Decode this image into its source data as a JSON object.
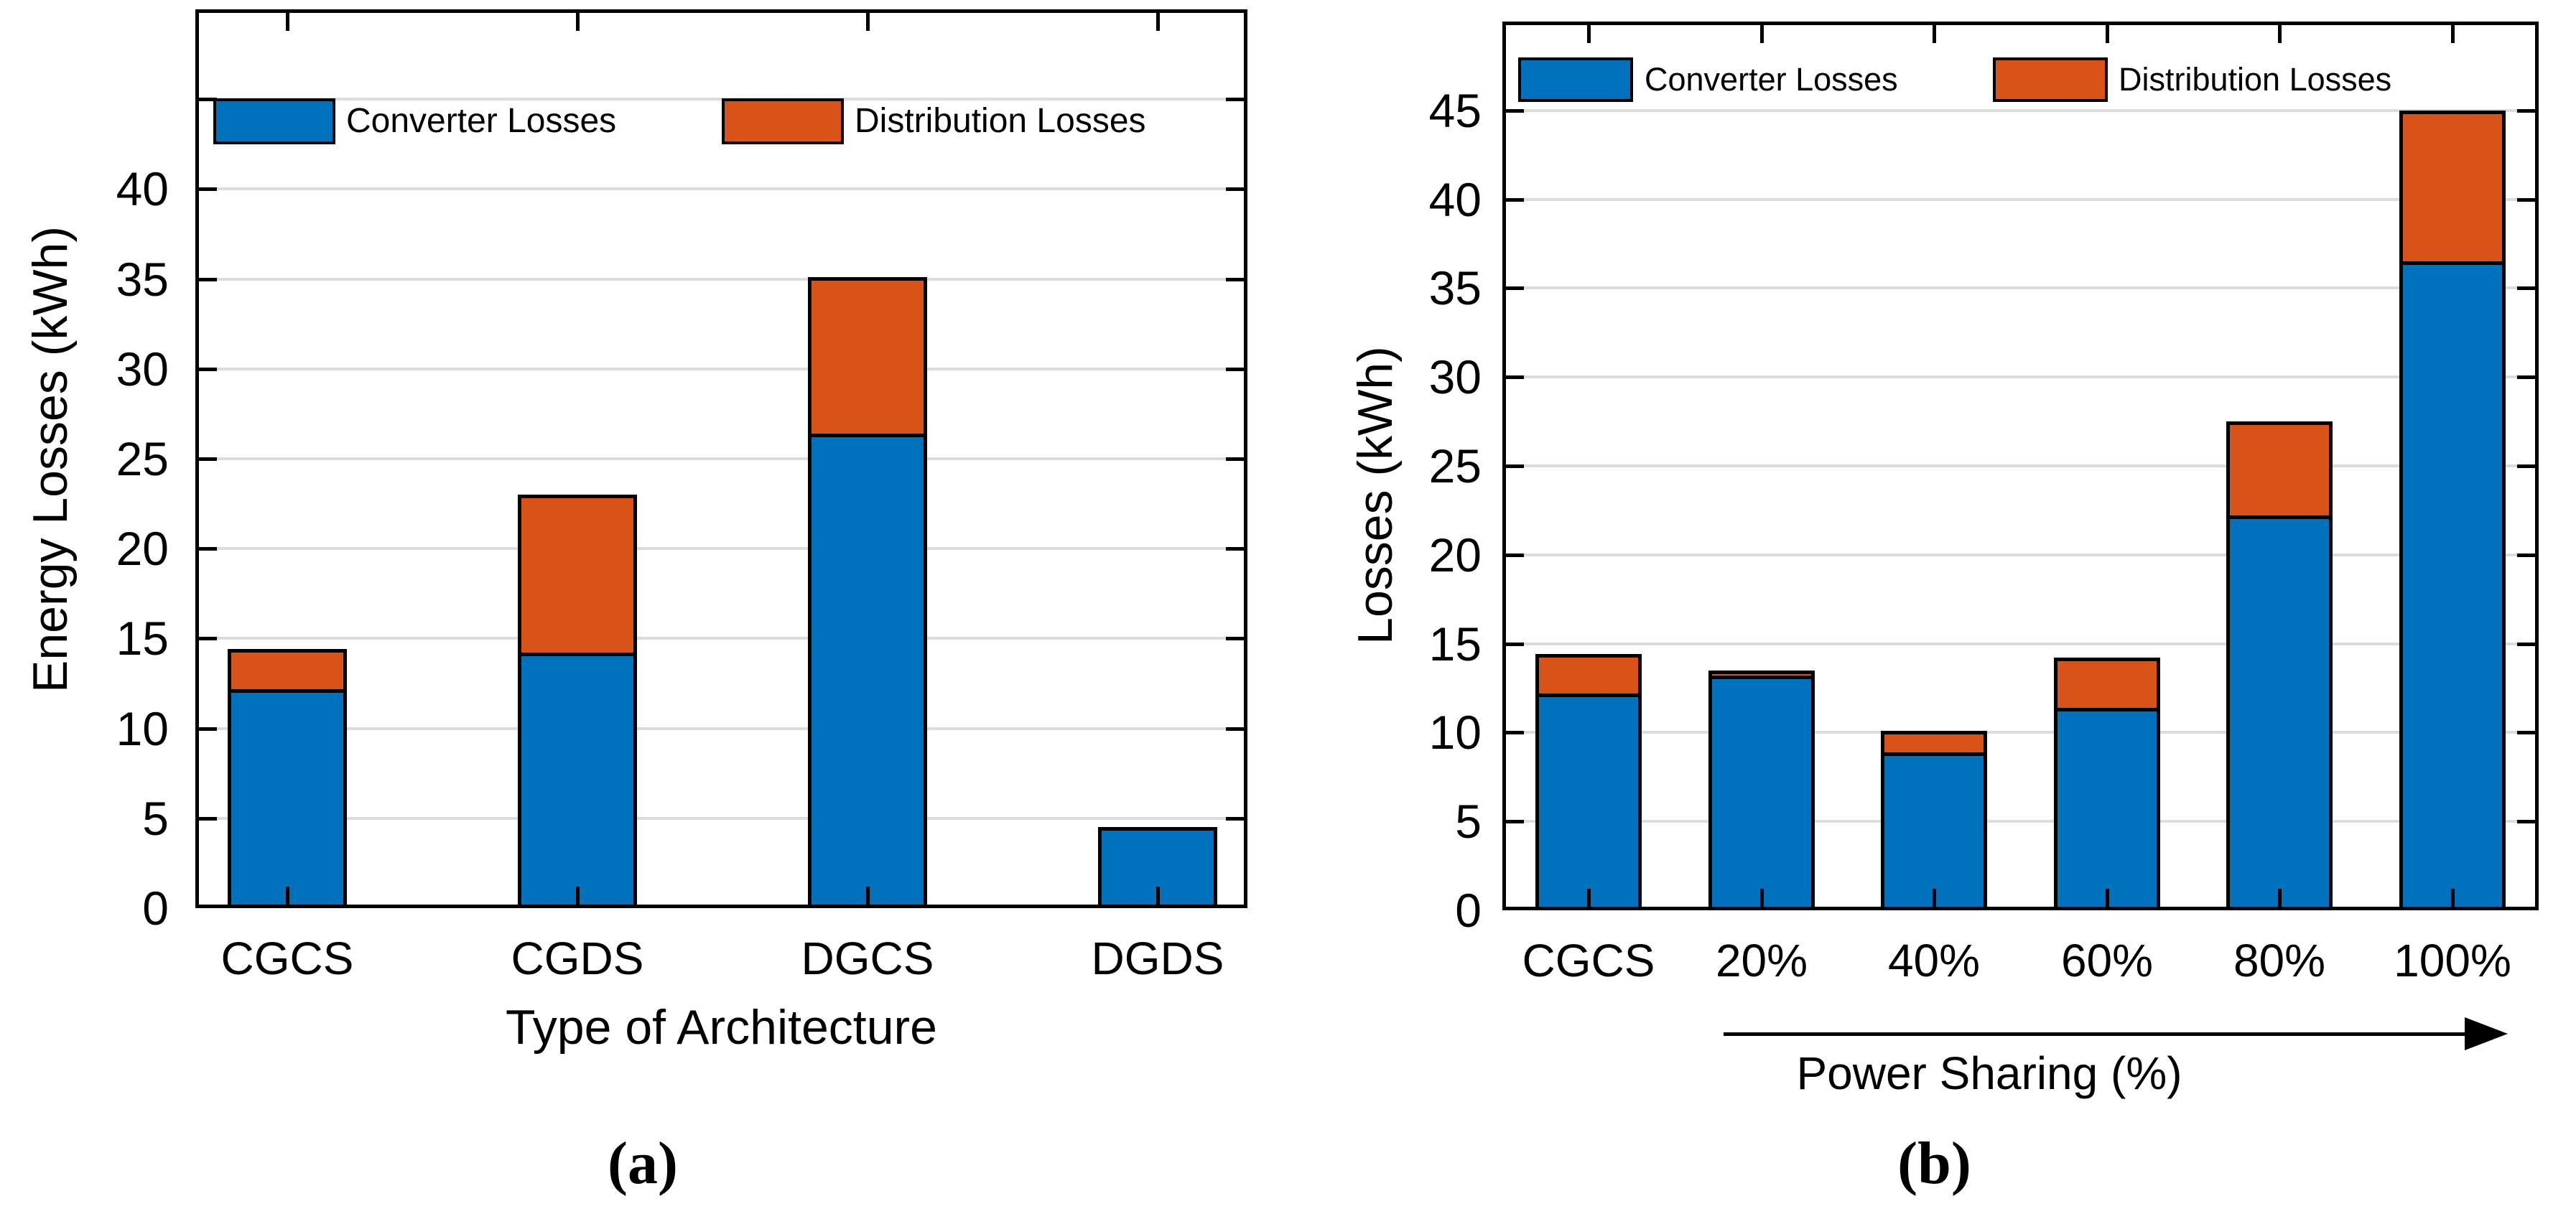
{
  "captions": {
    "a": "(a)",
    "b": "(b)"
  },
  "legend": {
    "converter": "Converter Losses",
    "distribution": "Distribution Losses"
  },
  "colors": {
    "converter_blue": "#0072BD",
    "distribution_orange": "#D95319",
    "grid_gray": "#DCDCDC",
    "frame_black": "#000000"
  },
  "chart_data": [
    {
      "id": "a",
      "type": "bar",
      "stacked": true,
      "title": "",
      "xlabel": "Type of Architecture",
      "ylabel": "Energy Losses (kWh)",
      "categories": [
        "CGCS",
        "CGDS",
        "DGCS",
        "DGDS"
      ],
      "series": [
        {
          "name": "Converter Losses",
          "color": "#0072BD",
          "values": [
            12.0,
            14.0,
            26.2,
            4.5
          ]
        },
        {
          "name": "Distribution Losses",
          "color": "#D95319",
          "values": [
            2.4,
            9.0,
            8.9,
            0
          ]
        }
      ],
      "totals": [
        14.4,
        23.0,
        35.1,
        4.5
      ],
      "ylim": [
        0,
        50
      ],
      "ytick_step": 5,
      "ytick_labels": [
        "0",
        "5",
        "10",
        "15",
        "20",
        "25",
        "30",
        "35",
        "40"
      ],
      "grid": true,
      "legend_position": "top-inside"
    },
    {
      "id": "b",
      "type": "bar",
      "stacked": true,
      "title": "",
      "xlabel": "Power Sharing (%)",
      "xlabel_arrow": true,
      "ylabel": "Losses (kWh)",
      "categories": [
        "CGCS",
        "20%",
        "40%",
        "60%",
        "80%",
        "100%"
      ],
      "series": [
        {
          "name": "Converter Losses",
          "color": "#0072BD",
          "values": [
            12.0,
            13.1,
            8.7,
            11.2,
            22.0,
            36.3
          ]
        },
        {
          "name": "Distribution Losses",
          "color": "#D95319",
          "values": [
            2.4,
            0.4,
            1.4,
            3.0,
            5.5,
            8.7
          ]
        }
      ],
      "totals": [
        14.4,
        13.5,
        10.1,
        14.2,
        27.5,
        45.0
      ],
      "ylim": [
        0,
        50
      ],
      "ytick_step": 5,
      "ytick_labels": [
        "0",
        "5",
        "10",
        "15",
        "20",
        "25",
        "30",
        "35",
        "40",
        "45"
      ],
      "grid": true,
      "legend_position": "top-inside"
    }
  ]
}
